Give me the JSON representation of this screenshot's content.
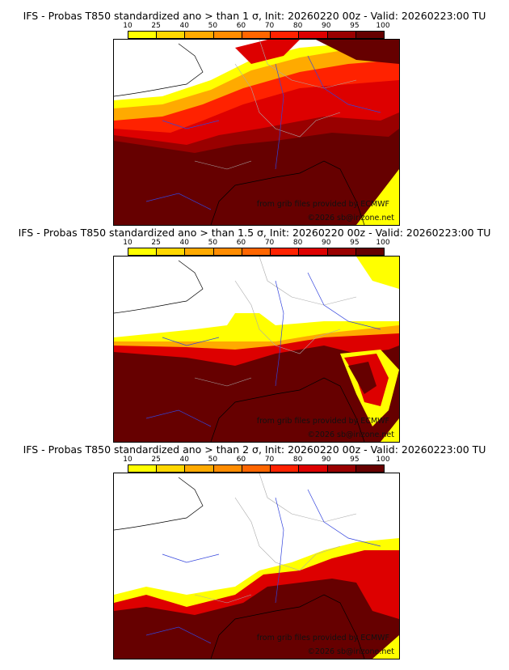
{
  "panels": [
    {
      "title": "IFS - Probas T850  standardized ano > than 1 σ, Init: 20260220 00z - Valid: 20260223:00 TU",
      "threshold_sigma": 1
    },
    {
      "title": "IFS - Probas T850  standardized ano > than 1.5 σ, Init: 20260220 00z - Valid: 20260223:00 TU",
      "threshold_sigma": 1.5
    },
    {
      "title": "IFS - Probas T850  standardized ano > than 2 σ, Init: 20260220 00z - Valid: 20260223:00 TU",
      "threshold_sigma": 2
    }
  ],
  "colorbar": {
    "ticks": [
      "10",
      "25",
      "40",
      "50",
      "60",
      "70",
      "80",
      "90",
      "95",
      "100"
    ],
    "colors": [
      "#ffff00",
      "#ffd700",
      "#ffaa00",
      "#ff8c00",
      "#ff6600",
      "#ff2200",
      "#dd0000",
      "#990000",
      "#660000"
    ]
  },
  "credits": {
    "source": "from grib files provided by ECMWF",
    "copyright": "©2026 sb@irizone.net"
  }
}
